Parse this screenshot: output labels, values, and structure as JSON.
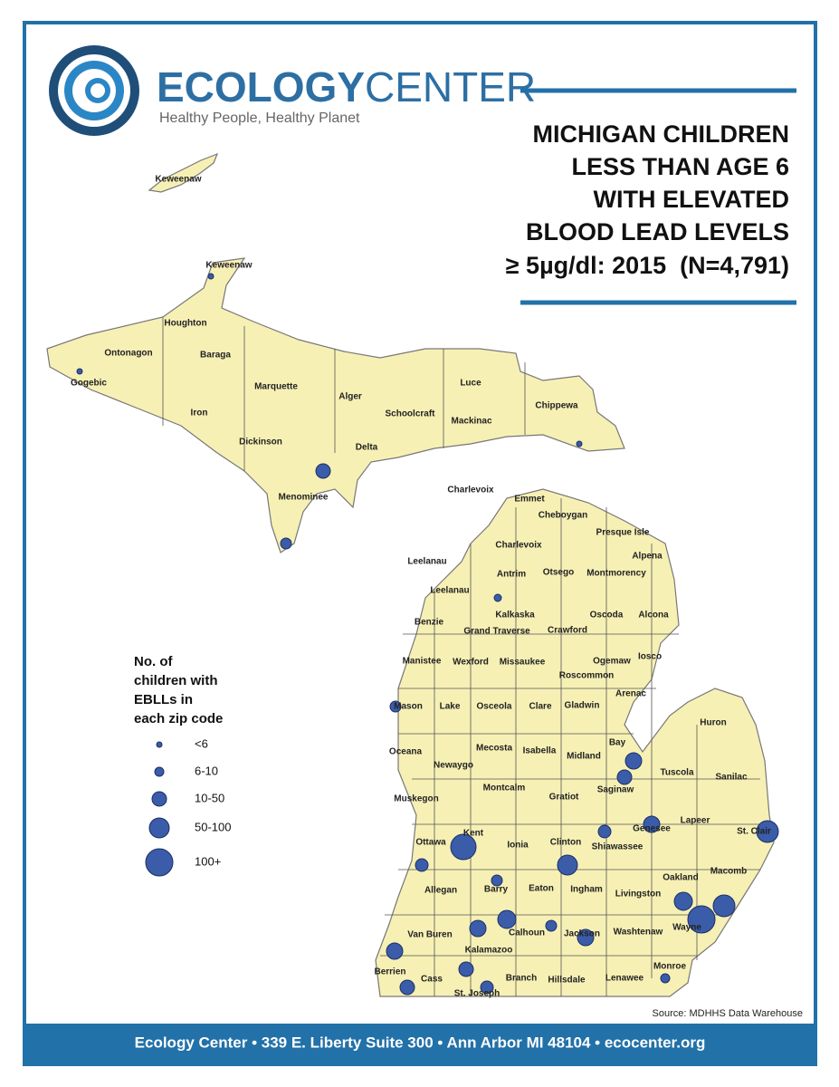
{
  "header": {
    "brand_bold": "ECOLOGY",
    "brand_light": "CENTER",
    "tagline": "Healthy People, Healthy Planet"
  },
  "title_lines": [
    "MICHIGAN CHILDREN",
    "LESS THAN AGE 6",
    "WITH ELEVATED",
    "BLOOD LEAD LEVELS",
    "≥ 5µg/dl: 2015  (N=4,791)"
  ],
  "legend": {
    "title_lines": [
      "No. of",
      "children with",
      "EBLLs in",
      "each zip code"
    ],
    "items": [
      "<6",
      "6-10",
      "10-50",
      "50-100",
      "100+"
    ]
  },
  "map": {
    "county_labels": [
      "Keweenaw",
      "Keweenaw",
      "Houghton",
      "Ontonagon",
      "Baraga",
      "Gogebic",
      "Marquette",
      "Alger",
      "Luce",
      "Chippewa",
      "Iron",
      "Schoolcraft",
      "Mackinac",
      "Dickinson",
      "Delta",
      "Menominee",
      "Charlevoix",
      "Emmet",
      "Cheboygan",
      "Presque Isle",
      "Charlevoix",
      "Leelanau",
      "Antrim",
      "Otsego",
      "Montmorency",
      "Alpena",
      "Leelanau",
      "Kalkaska",
      "Oscoda",
      "Alcona",
      "Benzie",
      "Grand Traverse",
      "Crawford",
      "Manistee",
      "Wexford",
      "Missaukee",
      "Ogemaw",
      "Iosco",
      "Roscommon",
      "Arenac",
      "Mason",
      "Lake",
      "Osceola",
      "Clare",
      "Gladwin",
      "Huron",
      "Bay",
      "Oceana",
      "Mecosta",
      "Isabella",
      "Midland",
      "Newaygo",
      "Tuscola",
      "Sanilac",
      "Saginaw",
      "Montcalm",
      "Gratiot",
      "Muskegon",
      "Lapeer",
      "Genesee",
      "St. Clair",
      "Kent",
      "Ottawa",
      "Ionia",
      "Clinton",
      "Shiawassee",
      "Macomb",
      "Oakland",
      "Allegan",
      "Barry",
      "Eaton",
      "Ingham",
      "Livingston",
      "Wayne",
      "Washtenaw",
      "Van Buren",
      "Calhoun",
      "Jackson",
      "Kalamazoo",
      "Monroe",
      "Berrien",
      "Cass",
      "Branch",
      "Hillsdale",
      "Lenawee",
      "St. Joseph"
    ]
  },
  "source": "Source: MDHHS Data Warehouse",
  "footer": "Ecology Center • 339 E. Liberty Suite 300 • Ann Arbor MI 48104 • ecocenter.org"
}
